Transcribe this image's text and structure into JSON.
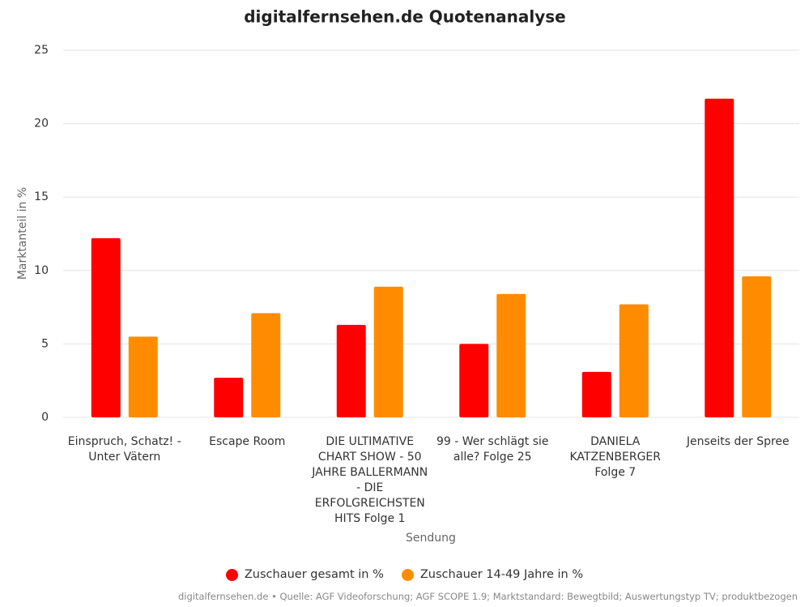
{
  "chart_data": {
    "type": "bar",
    "title": "digitalfernsehen.de Quotenanalyse",
    "y_label": "Marktanteil in %",
    "x_label": "Sendung",
    "source": "digitalfernsehen.de • Quelle: AGF Videoforschung; AGF SCOPE 1.9; Marktstandard: Bewegtbild; Auswertungstyp TV; produktbezogen",
    "categories": [
      "Einspruch, Schatz! - Unter Vätern",
      "Escape Room",
      "DIE ULTIMATIVE CHART SHOW - 50 JAHRE BALLERMANN - DIE ERFOLGREICHSTEN HITS Folge 1",
      "99 - Wer schlägt sie alle? Folge 25",
      "DANIELA KATZENBERGER Folge 7",
      "Jenseits der Spree"
    ],
    "series": [
      {
        "name": "Zuschauer gesamt in %",
        "color": "#ff0000",
        "values": [
          12.2,
          2.7,
          6.3,
          5.0,
          3.1,
          21.7
        ]
      },
      {
        "name": "Zuschauer 14-49 Jahre in %",
        "color": "#ff8c00",
        "values": [
          5.5,
          7.1,
          8.9,
          8.4,
          7.7,
          9.6
        ]
      }
    ],
    "ylim": [
      0,
      25
    ],
    "yticks": [
      0,
      5,
      10,
      15,
      20,
      25
    ],
    "grid": true,
    "legend": "bottom"
  }
}
